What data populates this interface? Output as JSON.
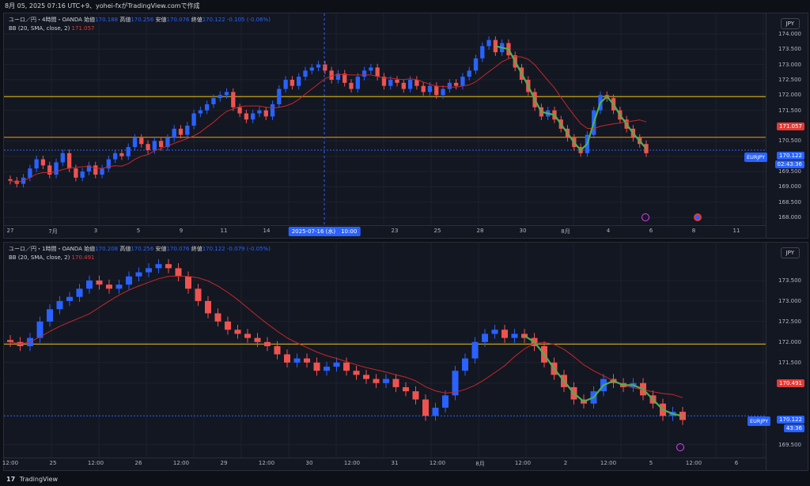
{
  "topbar": {
    "text": "8月 05, 2025 07:16 UTC+9、yohei-fxがTradingView.comで作成"
  },
  "pane1": {
    "info_line1": {
      "symbol": "ユーロ／円・4時間・OANDA",
      "o_label": "始値",
      "o": "170.188",
      "h_label": "高値",
      "h": "170.256",
      "l_label": "安値",
      "l": "170.076",
      "c_label": "終値",
      "c": "170.122",
      "chg": "-0.105 (-0.06%)"
    },
    "bb_label": "BB (20, SMA, close, 2)",
    "bb_value": "171.057",
    "currency": "JPY",
    "price_ticks": [
      "174.000",
      "173.500",
      "173.000",
      "172.500",
      "172.000",
      "171.500",
      "170.500",
      "170.000",
      "169.500",
      "169.000",
      "168.500",
      "168.000"
    ],
    "badge_bb": "171.057",
    "symbol_tag": "EURJPY",
    "last_price": "170.122",
    "countdown": "02:43:36",
    "x_labels": [
      "27",
      "7月",
      "3",
      "5",
      "9",
      "11",
      "14",
      "18",
      "21",
      "23",
      "25",
      "28",
      "30",
      "8月",
      "4",
      "6",
      "8",
      "11"
    ],
    "x_highlight": "2025-07-16 (水)　10:00",
    "chart_data": {
      "type": "candlestick",
      "timeframe": "4時間",
      "ylim": [
        167.9,
        174.1
      ],
      "hlines": [
        {
          "price": 171.95,
          "color": "#f0c419"
        },
        {
          "price": 170.62,
          "color": "#ff9800"
        },
        {
          "price": 170.2,
          "color": "#2962ff"
        }
      ],
      "trend_close": [
        169.2,
        169.1,
        169.3,
        169.6,
        169.9,
        169.7,
        169.4,
        169.8,
        170.1,
        169.6,
        169.3,
        169.5,
        169.7,
        169.4,
        169.6,
        169.9,
        170.1,
        170.0,
        170.3,
        170.6,
        170.4,
        170.2,
        170.5,
        170.3,
        170.6,
        170.9,
        170.7,
        171.0,
        171.4,
        171.5,
        171.7,
        171.9,
        172.0,
        172.1,
        171.6,
        171.4,
        171.2,
        171.4,
        171.5,
        171.3,
        171.7,
        172.2,
        172.5,
        172.3,
        172.6,
        172.8,
        172.9,
        173.0,
        172.8,
        172.5,
        172.7,
        172.4,
        172.2,
        172.6,
        172.8,
        172.9,
        172.6,
        172.3,
        172.5,
        172.4,
        172.2,
        172.5,
        172.3,
        172.1,
        172.3,
        172.0,
        172.2,
        172.4,
        172.3,
        172.6,
        172.8,
        173.2,
        173.6,
        173.8,
        173.4,
        173.7,
        173.3,
        172.9,
        172.5,
        172.1,
        171.6,
        171.3,
        171.5,
        171.2,
        170.9,
        170.6,
        170.3,
        170.1,
        170.7,
        171.5,
        172.0,
        171.9,
        171.5,
        171.2,
        170.9,
        170.6,
        170.4,
        170.1
      ]
    }
  },
  "pane2": {
    "info_line1": {
      "symbol": "ユーロ／円・1時間・OANDA",
      "o_label": "始値",
      "o": "170.208",
      "h_label": "高値",
      "h": "170.256",
      "l_label": "安値",
      "l": "170.076",
      "c_label": "終値",
      "c": "170.122",
      "chg": "-0.079 (-0.05%)"
    },
    "bb_label": "BB (20, SMA, close, 2)",
    "bb_value": "170.491",
    "currency": "JPY",
    "price_ticks": [
      "173.500",
      "173.000",
      "172.500",
      "172.000",
      "171.500",
      "171.000",
      "169.500"
    ],
    "badge_bb": "170.491",
    "symbol_tag": "EURJPY",
    "last_price": "170.122",
    "countdown": "43:36",
    "x_labels": [
      "12:00",
      "25",
      "12:00",
      "26",
      "12:00",
      "29",
      "12:00",
      "30",
      "12:00",
      "31",
      "12:00",
      "8月",
      "12:00",
      "2",
      "12:00",
      "5",
      "12:00",
      "6"
    ],
    "chart_data": {
      "type": "candlestick",
      "timeframe": "1時間",
      "ylim": [
        169.3,
        174.0
      ],
      "hlines": [
        {
          "price": 171.95,
          "color": "#f0c419"
        },
        {
          "price": 170.2,
          "color": "#2962ff"
        }
      ],
      "trend_close": [
        172.0,
        171.9,
        172.1,
        172.5,
        172.8,
        173.0,
        173.1,
        173.3,
        173.5,
        173.4,
        173.3,
        173.4,
        173.6,
        173.7,
        173.8,
        173.9,
        173.8,
        173.6,
        173.3,
        173.0,
        172.7,
        172.5,
        172.3,
        172.2,
        172.1,
        172.0,
        171.9,
        171.7,
        171.5,
        171.6,
        171.5,
        171.3,
        171.4,
        171.5,
        171.3,
        171.2,
        171.1,
        171.0,
        171.1,
        170.9,
        170.8,
        170.6,
        170.2,
        170.4,
        170.7,
        171.3,
        171.6,
        172.0,
        172.2,
        172.3,
        172.1,
        172.2,
        172.1,
        171.9,
        171.5,
        171.2,
        170.9,
        170.6,
        170.5,
        170.8,
        171.1,
        171.0,
        170.9,
        171.0,
        170.7,
        170.5,
        170.2,
        170.3,
        170.1
      ]
    }
  },
  "footer": {
    "brand": "TradingView",
    "logo_glyph": "17"
  }
}
